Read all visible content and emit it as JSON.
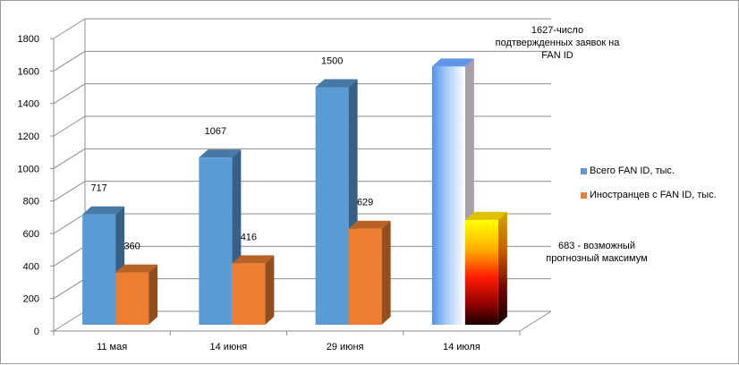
{
  "chart_data": {
    "type": "bar",
    "categories": [
      "11 мая",
      "14 июня",
      "29 июня",
      "14 июля"
    ],
    "series": [
      {
        "name": "Всего FAN ID, тыс.",
        "values": [
          717,
          1067,
          1500,
          1627
        ],
        "color": "#5b9bd5"
      },
      {
        "name": "Иностранцев с FAN ID, тыс.",
        "values": [
          360,
          416,
          629,
          683
        ],
        "color": "#ed7d31"
      }
    ],
    "data_labels": [
      [
        "717",
        "1067",
        "1500",
        ""
      ],
      [
        "360",
        "416",
        "629",
        ""
      ]
    ],
    "ylim": [
      0,
      1800
    ],
    "yticks": [
      "0",
      "200",
      "400",
      "600",
      "800",
      "1000",
      "1200",
      "1400",
      "1600",
      "1800"
    ],
    "grid": true,
    "legend_position": "right",
    "annotations": [
      {
        "lines": [
          "1627-число",
          "подтвержденных заявок на",
          "FAN ID"
        ],
        "target": "series-0-point-3"
      },
      {
        "lines": [
          "683 - возможный",
          "прогнозный максимум"
        ],
        "target": "series-1-point-3"
      }
    ]
  }
}
